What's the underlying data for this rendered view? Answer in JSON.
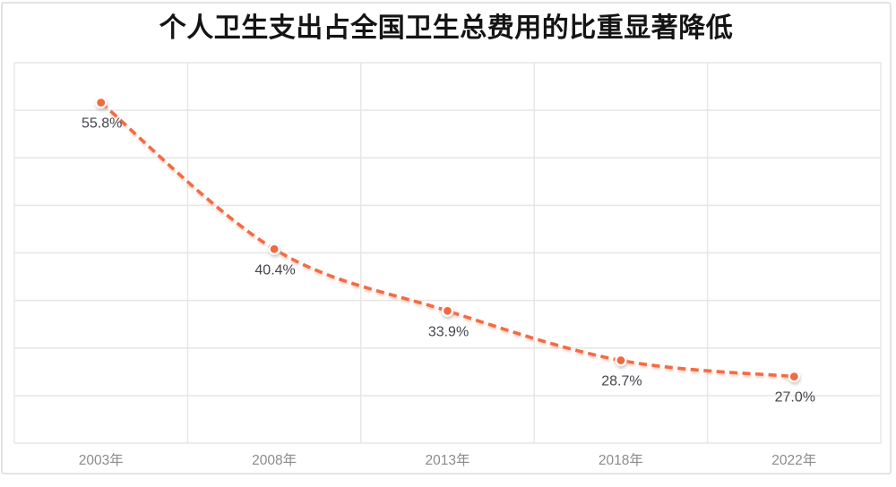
{
  "chart": {
    "title": "个人卫生支出占全国卫生总费用的比重显著降低"
  },
  "chart_data": {
    "type": "line",
    "title": "个人卫生支出占全国卫生总费用的比重显著降低",
    "categories": [
      "2003年",
      "2008年",
      "2013年",
      "2018年",
      "2022年"
    ],
    "values": [
      55.8,
      40.4,
      33.9,
      28.7,
      27.0
    ],
    "data_labels": [
      "55.8%",
      "40.4%",
      "33.9%",
      "28.7%",
      "27.0%"
    ],
    "xlabel": "",
    "ylabel": "",
    "ylim": [
      20,
      60
    ],
    "grid_step": 5,
    "grid": true,
    "legend_position": "none",
    "line_style": "dashed",
    "smooth": true,
    "colors": {
      "line": "#F16C45",
      "marker_fill": "#EF6A40",
      "marker_ring": "#FFFFFF",
      "gridline": "#E6E6E6",
      "plot_border": "#E0E0E0",
      "card_border": "#E3E3E3",
      "title_text": "#141414",
      "data_label_text": "#45454D",
      "axis_label_text": "#8C8C8C",
      "background": "#FFFFFF"
    }
  }
}
